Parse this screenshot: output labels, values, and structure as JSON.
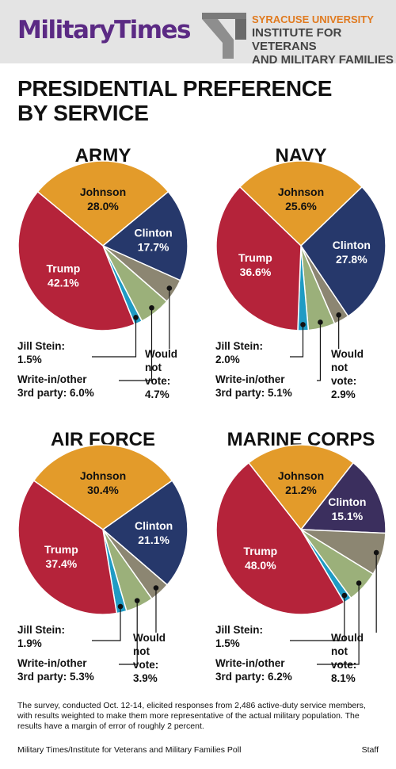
{
  "header": {
    "brand": "MilitaryTimes",
    "partner_line1": "SYRACUSE UNIVERSITY",
    "partner_line2": "INSTITUTE FOR VETERANS",
    "partner_line3": "AND MILITARY FAMILIES"
  },
  "title_line1": "PRESIDENTIAL PREFERENCE",
  "title_line2": "BY SERVICE",
  "colors": {
    "johnson": "#e39b2a",
    "clinton": "#26386b",
    "clinton_marines": "#3b2f5e",
    "would_not_vote": "#8c8672",
    "write_in": "#9bb07a",
    "stein": "#1f9bc4",
    "trump": "#b5233a"
  },
  "chart_data": [
    {
      "type": "pie",
      "title": "ARMY",
      "slices": [
        {
          "name": "Johnson",
          "value": 28.0,
          "label": "28.0%"
        },
        {
          "name": "Clinton",
          "value": 17.7,
          "label": "17.7%"
        },
        {
          "name": "Would not vote",
          "value": 4.7,
          "label": "4.7%"
        },
        {
          "name": "Write-in/other 3rd party",
          "value": 6.0,
          "label": "6.0%"
        },
        {
          "name": "Jill Stein",
          "value": 1.5,
          "label": "1.5%"
        },
        {
          "name": "Trump",
          "value": 42.1,
          "label": "42.1%"
        }
      ]
    },
    {
      "type": "pie",
      "title": "NAVY",
      "slices": [
        {
          "name": "Johnson",
          "value": 25.6,
          "label": "25.6%"
        },
        {
          "name": "Clinton",
          "value": 27.8,
          "label": "27.8%"
        },
        {
          "name": "Would not vote",
          "value": 2.9,
          "label": "2.9%"
        },
        {
          "name": "Write-in/other 3rd party",
          "value": 5.1,
          "label": "5.1%"
        },
        {
          "name": "Jill Stein",
          "value": 2.0,
          "label": "2.0%"
        },
        {
          "name": "Trump",
          "value": 36.6,
          "label": "36.6%"
        }
      ]
    },
    {
      "type": "pie",
      "title": "AIR FORCE",
      "slices": [
        {
          "name": "Johnson",
          "value": 30.4,
          "label": "30.4%"
        },
        {
          "name": "Clinton",
          "value": 21.1,
          "label": "21.1%"
        },
        {
          "name": "Would not vote",
          "value": 3.9,
          "label": "3.9%"
        },
        {
          "name": "Write-in/other 3rd party",
          "value": 5.3,
          "label": "5.3%"
        },
        {
          "name": "Jill Stein",
          "value": 1.9,
          "label": "1.9%"
        },
        {
          "name": "Trump",
          "value": 37.4,
          "label": "37.4%"
        }
      ]
    },
    {
      "type": "pie",
      "title": "MARINE CORPS",
      "slices": [
        {
          "name": "Johnson",
          "value": 21.2,
          "label": "21.2%"
        },
        {
          "name": "Clinton",
          "value": 15.1,
          "label": "15.1%"
        },
        {
          "name": "Would not vote",
          "value": 8.1,
          "label": "8.1%"
        },
        {
          "name": "Write-in/other 3rd party",
          "value": 6.2,
          "label": "6.2%"
        },
        {
          "name": "Jill Stein",
          "value": 1.5,
          "label": "1.5%"
        },
        {
          "name": "Trump",
          "value": 48.0,
          "label": "48.0%"
        }
      ]
    }
  ],
  "callout_labels": {
    "stein": "Jill Stein:",
    "write_in_line1": "Write-in/other",
    "write_in_line2": "3rd party:",
    "would_line1": "Would",
    "would_line2": "not",
    "would_line3": "vote:"
  },
  "footnote": "The survey, conducted Oct. 12-14, elicited responses from 2,486 active-duty service members, with results weighted to make them more representative of the actual military population. The results have a margin of error of roughly 2 percent.",
  "source": "Military Times/Institute for Veterans and Military Families Poll",
  "credit": "Staff"
}
